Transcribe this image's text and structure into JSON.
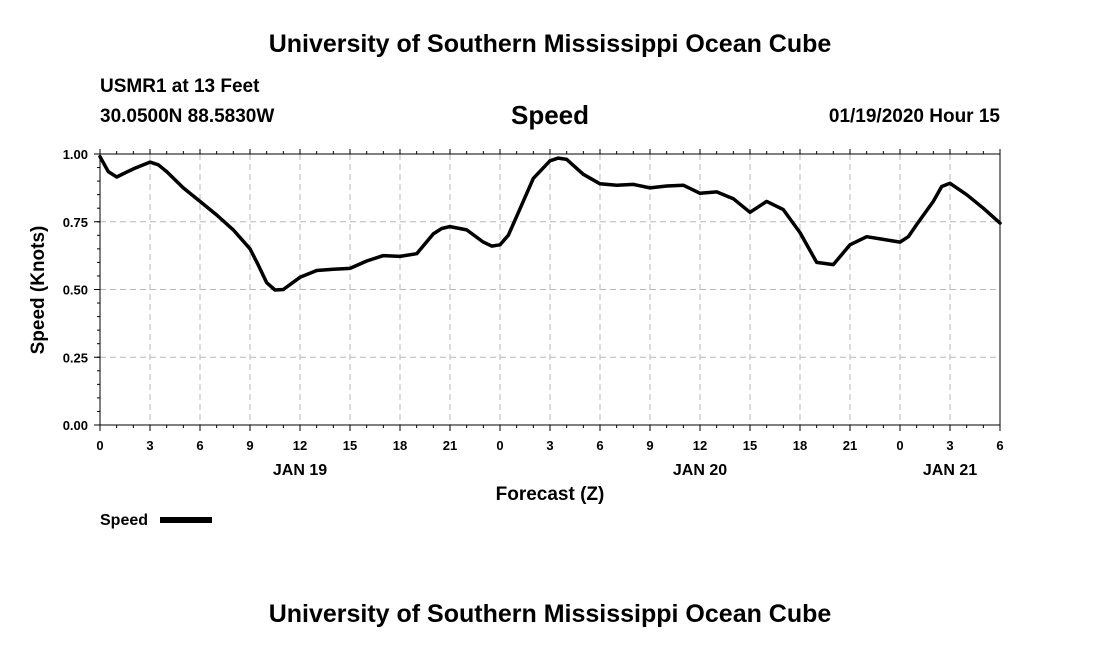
{
  "header": {
    "title": "University of Southern Mississippi Ocean Cube",
    "station": "USMR1 at 13 Feet",
    "coordinates": "30.0500N 88.5830W",
    "chart_title": "Speed",
    "datetime": "01/19/2020 Hour 15"
  },
  "footer": {
    "title": "University of Southern Mississippi Ocean Cube"
  },
  "chart_data": {
    "type": "line",
    "title": "Speed",
    "xlabel": "Forecast (Z)",
    "ylabel": "Speed (Knots)",
    "ylim": [
      0,
      1
    ],
    "xlim": [
      0,
      54
    ],
    "grid": true,
    "x_unit": "hours since 2020-01-19 00Z",
    "yticks": [
      "0.00",
      "0.25",
      "0.50",
      "0.75",
      "1.00"
    ],
    "xticks": [
      "0",
      "3",
      "6",
      "9",
      "12",
      "15",
      "18",
      "21",
      "0",
      "3",
      "6",
      "9",
      "12",
      "15",
      "18",
      "21",
      "0",
      "3",
      "6"
    ],
    "day_labels": [
      {
        "label": "JAN 19",
        "hour": 12
      },
      {
        "label": "JAN 20",
        "hour": 36
      },
      {
        "label": "JAN 21",
        "hour": 51
      }
    ],
    "legend": {
      "entry": "Speed",
      "placement": "bottom-left"
    },
    "series": [
      {
        "name": "Speed",
        "color": "#000000",
        "x": [
          0,
          0.5,
          1,
          2,
          3,
          3.5,
          4,
          5,
          6,
          7,
          8,
          9,
          9.5,
          10,
          10.5,
          11,
          12,
          13,
          14,
          15,
          16,
          17,
          18,
          19,
          20,
          20.5,
          21,
          22,
          23,
          23.5,
          24,
          24.5,
          25,
          26,
          27,
          27.5,
          28,
          29,
          30,
          31,
          32,
          33,
          34,
          35,
          36,
          37,
          38,
          39,
          40,
          41,
          42,
          43,
          44,
          45,
          46,
          47,
          48,
          48.5,
          49,
          50,
          50.5,
          51,
          52,
          53,
          54
        ],
        "values": [
          0.99,
          0.935,
          0.915,
          0.945,
          0.97,
          0.96,
          0.935,
          0.875,
          0.825,
          0.775,
          0.72,
          0.65,
          0.59,
          0.525,
          0.498,
          0.5,
          0.545,
          0.57,
          0.575,
          0.578,
          0.605,
          0.625,
          0.622,
          0.632,
          0.705,
          0.725,
          0.732,
          0.72,
          0.675,
          0.66,
          0.665,
          0.7,
          0.77,
          0.91,
          0.975,
          0.985,
          0.98,
          0.925,
          0.89,
          0.885,
          0.888,
          0.875,
          0.882,
          0.885,
          0.855,
          0.86,
          0.835,
          0.785,
          0.825,
          0.795,
          0.71,
          0.6,
          0.592,
          0.665,
          0.695,
          0.685,
          0.675,
          0.695,
          0.74,
          0.825,
          0.88,
          0.892,
          0.85,
          0.8,
          0.745
        ]
      }
    ]
  }
}
